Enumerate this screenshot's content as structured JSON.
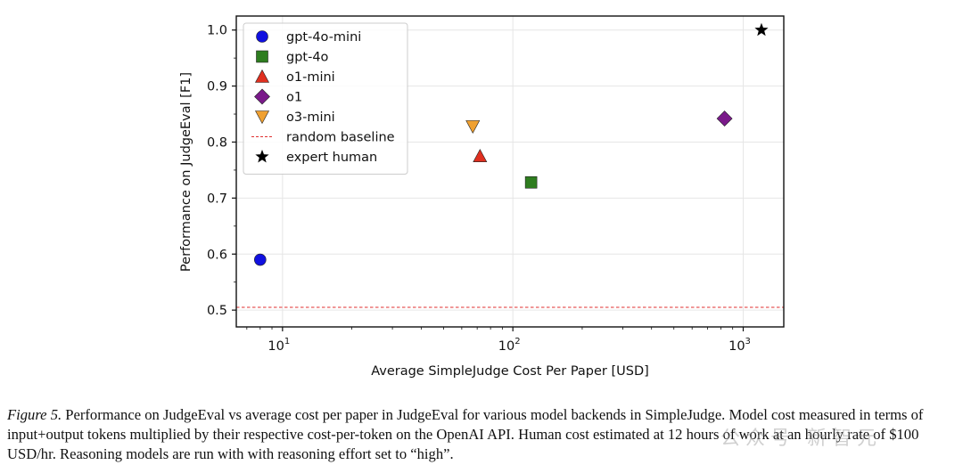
{
  "chart_data": {
    "type": "scatter",
    "xscale": "log",
    "xlim": [
      6.3,
      1500
    ],
    "ylim": [
      0.47,
      1.025
    ],
    "xlabel": "Average SimpleJudge Cost Per Paper [USD]",
    "ylabel": "Performance on JudgeEval [F1]",
    "yticks": [
      "0.5",
      "0.6",
      "0.7",
      "0.8",
      "0.9",
      "1.0"
    ],
    "ytick_values": [
      0.5,
      0.6,
      0.7,
      0.8,
      0.9,
      1.0
    ],
    "xticks": [
      {
        "value": 10,
        "base": "10",
        "exp": "1"
      },
      {
        "value": 100,
        "base": "10",
        "exp": "2"
      },
      {
        "value": 1000,
        "base": "10",
        "exp": "3"
      }
    ],
    "grid": true,
    "legend_position": "upper-left",
    "series": [
      {
        "name": "gpt-4o-mini",
        "marker": "circle",
        "color": "#1010e0",
        "x": 8,
        "y": 0.59
      },
      {
        "name": "gpt-4o",
        "marker": "square",
        "color": "#2e7d1f",
        "x": 120,
        "y": 0.728
      },
      {
        "name": "o1-mini",
        "marker": "triangle-up",
        "color": "#e03020",
        "x": 72,
        "y": 0.775
      },
      {
        "name": "o1",
        "marker": "diamond",
        "color": "#7a1a8a",
        "x": 830,
        "y": 0.842
      },
      {
        "name": "o3-mini",
        "marker": "triangle-down",
        "color": "#f0a030",
        "x": 67,
        "y": 0.828
      },
      {
        "name": "random baseline",
        "marker": "hline",
        "color": "#e03030",
        "y": 0.505
      },
      {
        "name": "expert human",
        "marker": "star",
        "color": "#000000",
        "x": 1200,
        "y": 1.0
      }
    ]
  },
  "caption": {
    "label": "Figure 5.",
    "text": " Performance on JudgeEval vs average cost per paper in JudgeEval for various model backends in SimpleJudge. Model cost measured in terms of input+output tokens multiplied by their respective cost-per-token on the OpenAI API. Human cost estimated at 12 hours of work at an hourly rate of $100 USD/hr. Reasoning models are run with with reasoning effort set to “high”."
  }
}
